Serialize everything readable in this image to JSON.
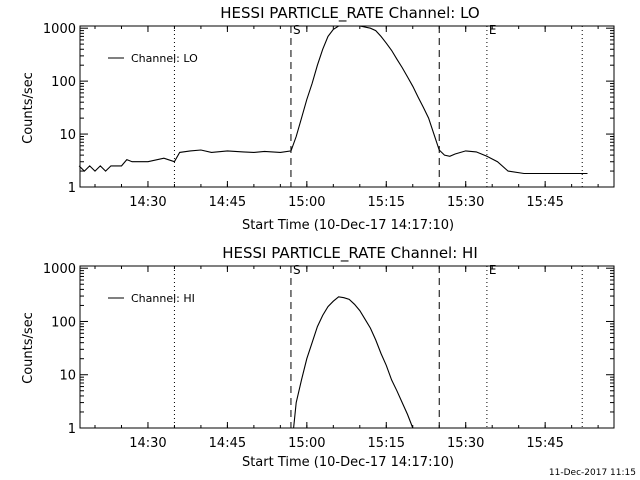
{
  "footer_stamp": "11-Dec-2017 11:15",
  "chart_data": [
    {
      "type": "line",
      "title": "HESSI PARTICLE_RATE Channel: LO",
      "xlabel": "Start Time (10-Dec-17 14:17:10)",
      "ylabel": "Counts/sec",
      "yscale": "log",
      "ylim": [
        1,
        1100
      ],
      "xlim": [
        "14:17:10",
        "15:58"
      ],
      "x_ticks": [
        "14:30",
        "14:45",
        "15:00",
        "15:15",
        "15:30",
        "15:45"
      ],
      "y_ticks": [
        "1",
        "10",
        "100",
        "1000"
      ],
      "legend": "top-left",
      "markers": [
        {
          "label": "S",
          "time": "14:57",
          "style": "dashed"
        },
        {
          "label": "",
          "time": "15:25",
          "style": "dashed"
        },
        {
          "label": "E",
          "time": "15:34",
          "style": "dotted"
        }
      ],
      "extra_vlines_dotted": [
        "14:35",
        "15:52"
      ],
      "series": [
        {
          "name": "Channel: LO",
          "x": [
            "14:17",
            "14:18",
            "14:19",
            "14:20",
            "14:21",
            "14:22",
            "14:23",
            "14:24",
            "14:25",
            "14:26",
            "14:27",
            "14:28",
            "14:30",
            "14:33",
            "14:35",
            "14:36",
            "14:38",
            "14:40",
            "14:42",
            "14:45",
            "14:48",
            "14:50",
            "14:52",
            "14:55",
            "14:57",
            "14:58",
            "14:59",
            "15:00",
            "15:01",
            "15:02",
            "15:03",
            "15:04",
            "15:05",
            "15:06",
            "15:07",
            "15:08",
            "15:10",
            "15:12",
            "15:13",
            "15:14",
            "15:15",
            "15:16",
            "15:17",
            "15:18",
            "15:19",
            "15:20",
            "15:21",
            "15:22",
            "15:23",
            "15:24",
            "15:25",
            "15:26",
            "15:27",
            "15:28",
            "15:30",
            "15:32",
            "15:34",
            "15:36",
            "15:38",
            "15:41",
            "15:43",
            "15:45",
            "15:47",
            "15:49",
            "15:51",
            "15:53"
          ],
          "y": [
            2.5,
            2.0,
            2.5,
            2.0,
            2.5,
            2.0,
            2.5,
            2.5,
            2.5,
            3.3,
            3.0,
            3.0,
            3.0,
            3.5,
            3.0,
            4.5,
            4.8,
            5.0,
            4.5,
            4.8,
            4.6,
            4.5,
            4.7,
            4.5,
            4.8,
            9,
            20,
            45,
            90,
            200,
            400,
            700,
            950,
            1100,
            1100,
            1100,
            1100,
            1000,
            900,
            700,
            520,
            380,
            260,
            180,
            120,
            80,
            50,
            32,
            20,
            10,
            5,
            4,
            3.8,
            4.2,
            4.8,
            4.6,
            3.8,
            3.0,
            2.0,
            1.8,
            1.8,
            1.8,
            1.8,
            1.8,
            1.8,
            1.8
          ]
        }
      ]
    },
    {
      "type": "line",
      "title": "HESSI PARTICLE_RATE Channel: HI",
      "xlabel": "Start Time (10-Dec-17 14:17:10)",
      "ylabel": "Counts/sec",
      "yscale": "log",
      "ylim": [
        1,
        1100
      ],
      "xlim": [
        "14:17:10",
        "15:58"
      ],
      "x_ticks": [
        "14:30",
        "14:45",
        "15:00",
        "15:15",
        "15:30",
        "15:45"
      ],
      "y_ticks": [
        "1",
        "10",
        "100",
        "1000"
      ],
      "legend": "top-left",
      "markers": [
        {
          "label": "S",
          "time": "14:57",
          "style": "dashed"
        },
        {
          "label": "",
          "time": "15:25",
          "style": "dashed"
        },
        {
          "label": "E",
          "time": "15:34",
          "style": "dotted"
        }
      ],
      "extra_vlines_dotted": [
        "14:35",
        "15:52"
      ],
      "series": [
        {
          "name": "Channel: HI",
          "x": [
            "14:57.5",
            "14:58",
            "14:59",
            "15:00",
            "15:01",
            "15:02",
            "15:03",
            "15:04",
            "15:05",
            "15:06",
            "15:07",
            "15:08",
            "15:09",
            "15:10",
            "15:11",
            "15:12",
            "15:13",
            "15:14",
            "15:15",
            "15:16",
            "15:17",
            "15:18",
            "15:19",
            "15:20"
          ],
          "y": [
            1,
            3,
            8,
            20,
            40,
            80,
            130,
            190,
            240,
            290,
            280,
            260,
            210,
            160,
            110,
            75,
            45,
            25,
            15,
            8,
            5,
            3,
            1.8,
            1
          ]
        }
      ]
    }
  ]
}
